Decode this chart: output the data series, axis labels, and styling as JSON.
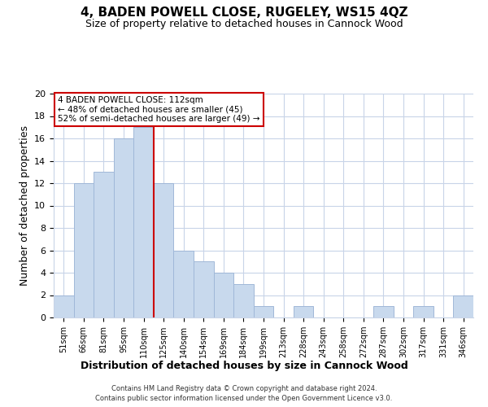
{
  "title": "4, BADEN POWELL CLOSE, RUGELEY, WS15 4QZ",
  "subtitle": "Size of property relative to detached houses in Cannock Wood",
  "xlabel": "Distribution of detached houses by size in Cannock Wood",
  "ylabel": "Number of detached properties",
  "bar_labels": [
    "51sqm",
    "66sqm",
    "81sqm",
    "95sqm",
    "110sqm",
    "125sqm",
    "140sqm",
    "154sqm",
    "169sqm",
    "184sqm",
    "199sqm",
    "213sqm",
    "228sqm",
    "243sqm",
    "258sqm",
    "272sqm",
    "287sqm",
    "302sqm",
    "317sqm",
    "331sqm",
    "346sqm"
  ],
  "bar_values": [
    2,
    12,
    13,
    16,
    17,
    12,
    6,
    5,
    4,
    3,
    1,
    0,
    1,
    0,
    0,
    0,
    1,
    0,
    1,
    0,
    2
  ],
  "bar_color": "#c8d9ed",
  "bar_edge_color": "#a0b8d8",
  "reference_line_x": 4.5,
  "reference_line_color": "#cc0000",
  "ylim": [
    0,
    20
  ],
  "yticks": [
    0,
    2,
    4,
    6,
    8,
    10,
    12,
    14,
    16,
    18,
    20
  ],
  "annotation_title": "4 BADEN POWELL CLOSE: 112sqm",
  "annotation_line1": "← 48% of detached houses are smaller (45)",
  "annotation_line2": "52% of semi-detached houses are larger (49) →",
  "annotation_box_color": "#ffffff",
  "annotation_box_edge": "#cc0000",
  "footnote1": "Contains HM Land Registry data © Crown copyright and database right 2024.",
  "footnote2": "Contains public sector information licensed under the Open Government Licence v3.0.",
  "background_color": "#ffffff",
  "grid_color": "#c8d4e8",
  "title_fontsize": 11,
  "subtitle_fontsize": 9,
  "xlabel_fontsize": 9,
  "ylabel_fontsize": 9
}
